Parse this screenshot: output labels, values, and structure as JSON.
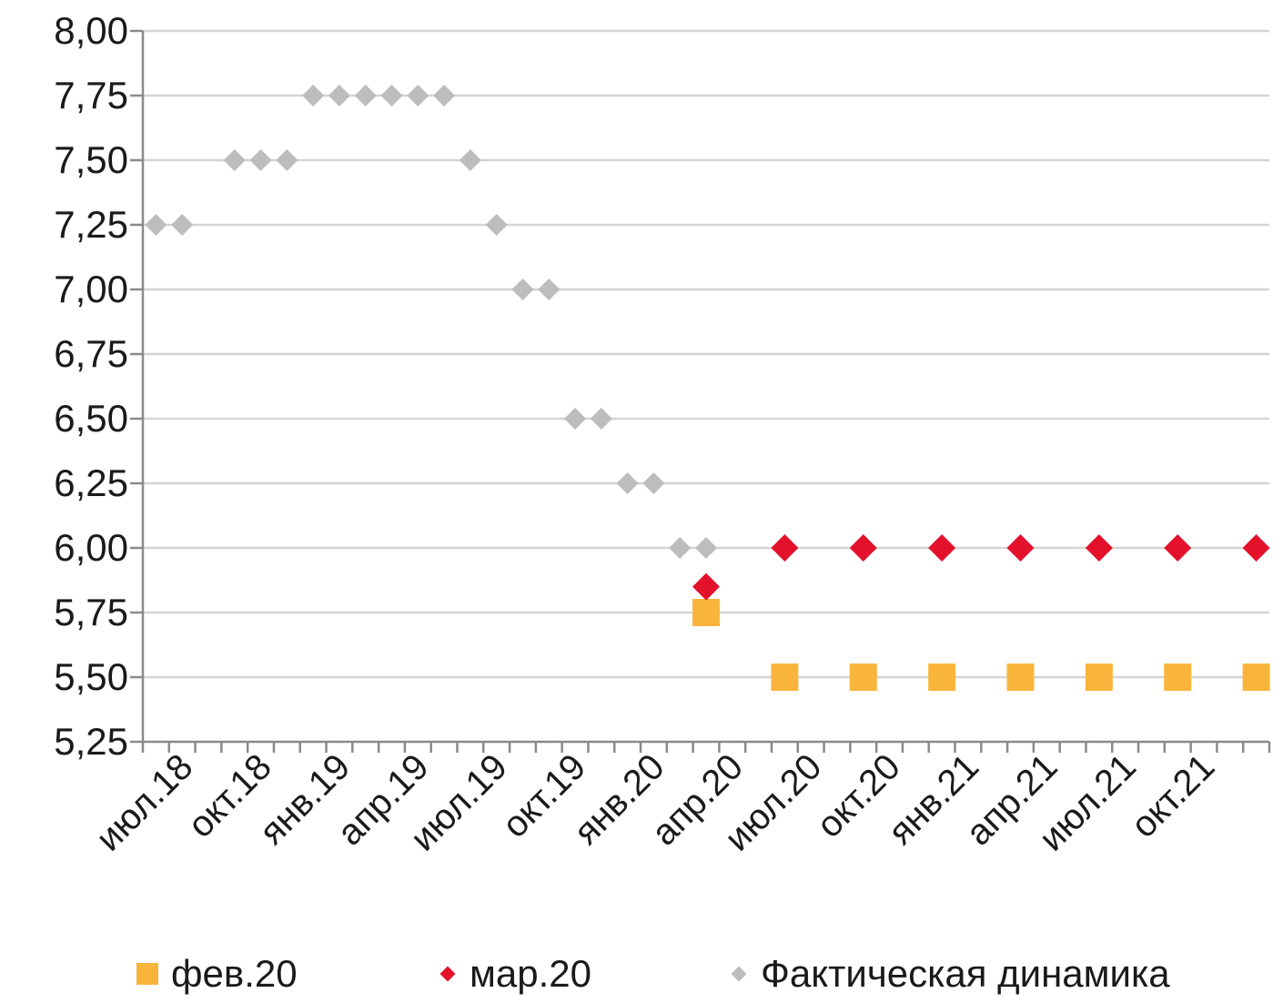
{
  "chart_data": {
    "type": "scatter",
    "title": "",
    "xlabel": "",
    "ylabel": "",
    "ylim": [
      5.25,
      8.0
    ],
    "y_ticks": [
      "8,00",
      "7,75",
      "7,50",
      "7,25",
      "7,00",
      "6,75",
      "6,50",
      "6,25",
      "6,00",
      "5,75",
      "5,50",
      "5,25"
    ],
    "x_tick_labels": [
      "июл.18",
      "окт.18",
      "янв.19",
      "апр.19",
      "июл.19",
      "окт.19",
      "янв.20",
      "апр.20",
      "июл.20",
      "окт.20",
      "янв.21",
      "апр.21",
      "июл.21",
      "окт.21"
    ],
    "x_range": [
      "2018-06",
      "2021-12"
    ],
    "grid": true,
    "legend_position": "bottom",
    "series": [
      {
        "name": "фев.20",
        "marker": "square",
        "color": "#F9B53B",
        "points": [
          {
            "x": "2020-03",
            "y": 5.75
          },
          {
            "x": "2020-06",
            "y": 5.5
          },
          {
            "x": "2020-09",
            "y": 5.5
          },
          {
            "x": "2020-12",
            "y": 5.5
          },
          {
            "x": "2021-03",
            "y": 5.5
          },
          {
            "x": "2021-06",
            "y": 5.5
          },
          {
            "x": "2021-09",
            "y": 5.5
          },
          {
            "x": "2021-12",
            "y": 5.5
          }
        ]
      },
      {
        "name": "мар.20",
        "marker": "diamond",
        "color": "#E4112B",
        "points": [
          {
            "x": "2020-03",
            "y": 5.85
          },
          {
            "x": "2020-06",
            "y": 6.0
          },
          {
            "x": "2020-09",
            "y": 6.0
          },
          {
            "x": "2020-12",
            "y": 6.0
          },
          {
            "x": "2021-03",
            "y": 6.0
          },
          {
            "x": "2021-06",
            "y": 6.0
          },
          {
            "x": "2021-09",
            "y": 6.0
          },
          {
            "x": "2021-12",
            "y": 6.0
          }
        ]
      },
      {
        "name": "Фактическая динамика",
        "marker": "diamond",
        "color": "#BDBDBD",
        "points": [
          {
            "x": "2018-06",
            "y": 7.25
          },
          {
            "x": "2018-07",
            "y": 7.25
          },
          {
            "x": "2018-09",
            "y": 7.5
          },
          {
            "x": "2018-10",
            "y": 7.5
          },
          {
            "x": "2018-11",
            "y": 7.5
          },
          {
            "x": "2018-12",
            "y": 7.75
          },
          {
            "x": "2019-01",
            "y": 7.75
          },
          {
            "x": "2019-02",
            "y": 7.75
          },
          {
            "x": "2019-03",
            "y": 7.75
          },
          {
            "x": "2019-04",
            "y": 7.75
          },
          {
            "x": "2019-05",
            "y": 7.75
          },
          {
            "x": "2019-06",
            "y": 7.5
          },
          {
            "x": "2019-07",
            "y": 7.25
          },
          {
            "x": "2019-08",
            "y": 7.0
          },
          {
            "x": "2019-09",
            "y": 7.0
          },
          {
            "x": "2019-10",
            "y": 6.5
          },
          {
            "x": "2019-11",
            "y": 6.5
          },
          {
            "x": "2019-12",
            "y": 6.25
          },
          {
            "x": "2020-01",
            "y": 6.25
          },
          {
            "x": "2020-02",
            "y": 6.0
          },
          {
            "x": "2020-03",
            "y": 6.0
          }
        ]
      }
    ]
  },
  "legend": {
    "items": [
      {
        "label": "фев.20"
      },
      {
        "label": "мар.20"
      },
      {
        "label": "Фактическая динамика"
      }
    ]
  }
}
